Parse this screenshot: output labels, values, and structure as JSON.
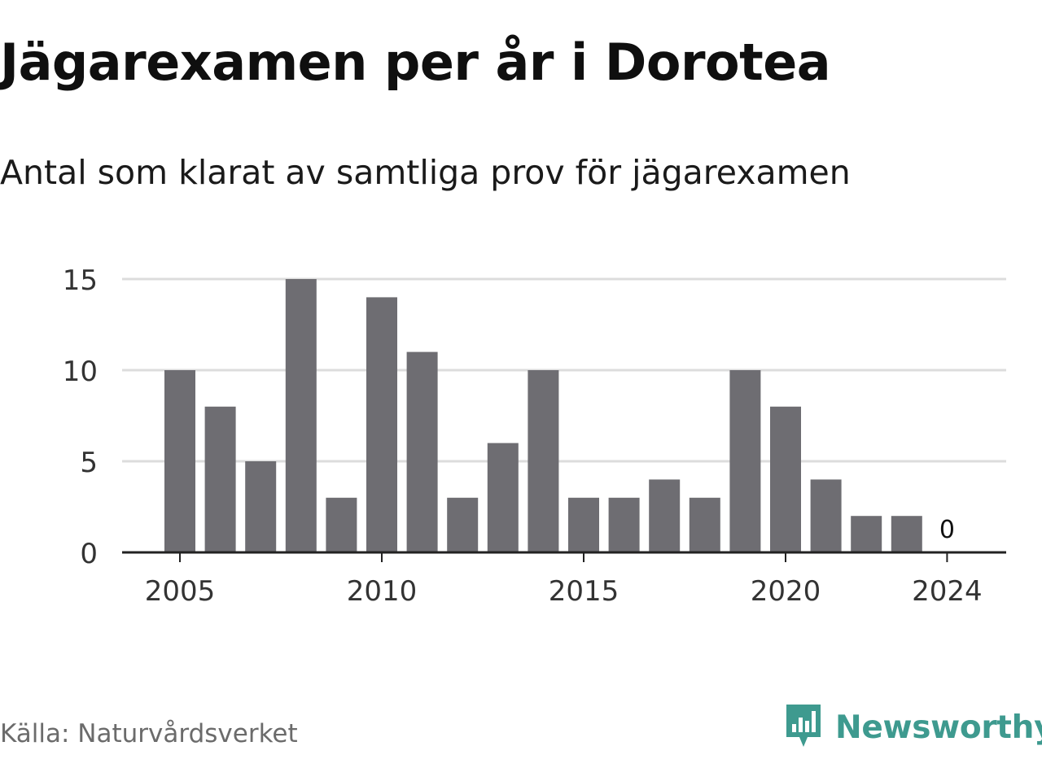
{
  "header": {
    "title": "Jägarexamen per år i Dorotea",
    "subtitle": "Antal som klarat av samtliga prov för jägarexamen"
  },
  "footer": {
    "source": "Källa: Naturvårdsverket",
    "brand": "Newsworthy",
    "brand_icon": "newsworthy-logo-icon"
  },
  "colors": {
    "bar": "#6e6d72",
    "grid": "#dcdcdc",
    "axis": "#222222",
    "brand": "#3e9a8f"
  },
  "chart_data": {
    "type": "bar",
    "title": "Jägarexamen per år i Dorotea",
    "subtitle": "Antal som klarat av samtliga prov för jägarexamen",
    "categories": [
      2005,
      2006,
      2007,
      2008,
      2009,
      2010,
      2011,
      2012,
      2013,
      2014,
      2015,
      2016,
      2017,
      2018,
      2019,
      2020,
      2021,
      2022,
      2023,
      2024
    ],
    "values": [
      10,
      8,
      5,
      15,
      3,
      14,
      11,
      3,
      6,
      10,
      3,
      3,
      4,
      3,
      10,
      8,
      4,
      2,
      2,
      0
    ],
    "x_tick_labels": [
      "2005",
      "2010",
      "2015",
      "2020",
      "2024"
    ],
    "y_ticks": [
      0,
      5,
      10,
      15
    ],
    "y_tick_labels": [
      "0",
      "5",
      "10",
      "15"
    ],
    "ylim": [
      0,
      15
    ],
    "xlabel": "",
    "ylabel": "",
    "grid": true,
    "annotations": [
      {
        "category": 2024,
        "text": "0"
      }
    ]
  }
}
